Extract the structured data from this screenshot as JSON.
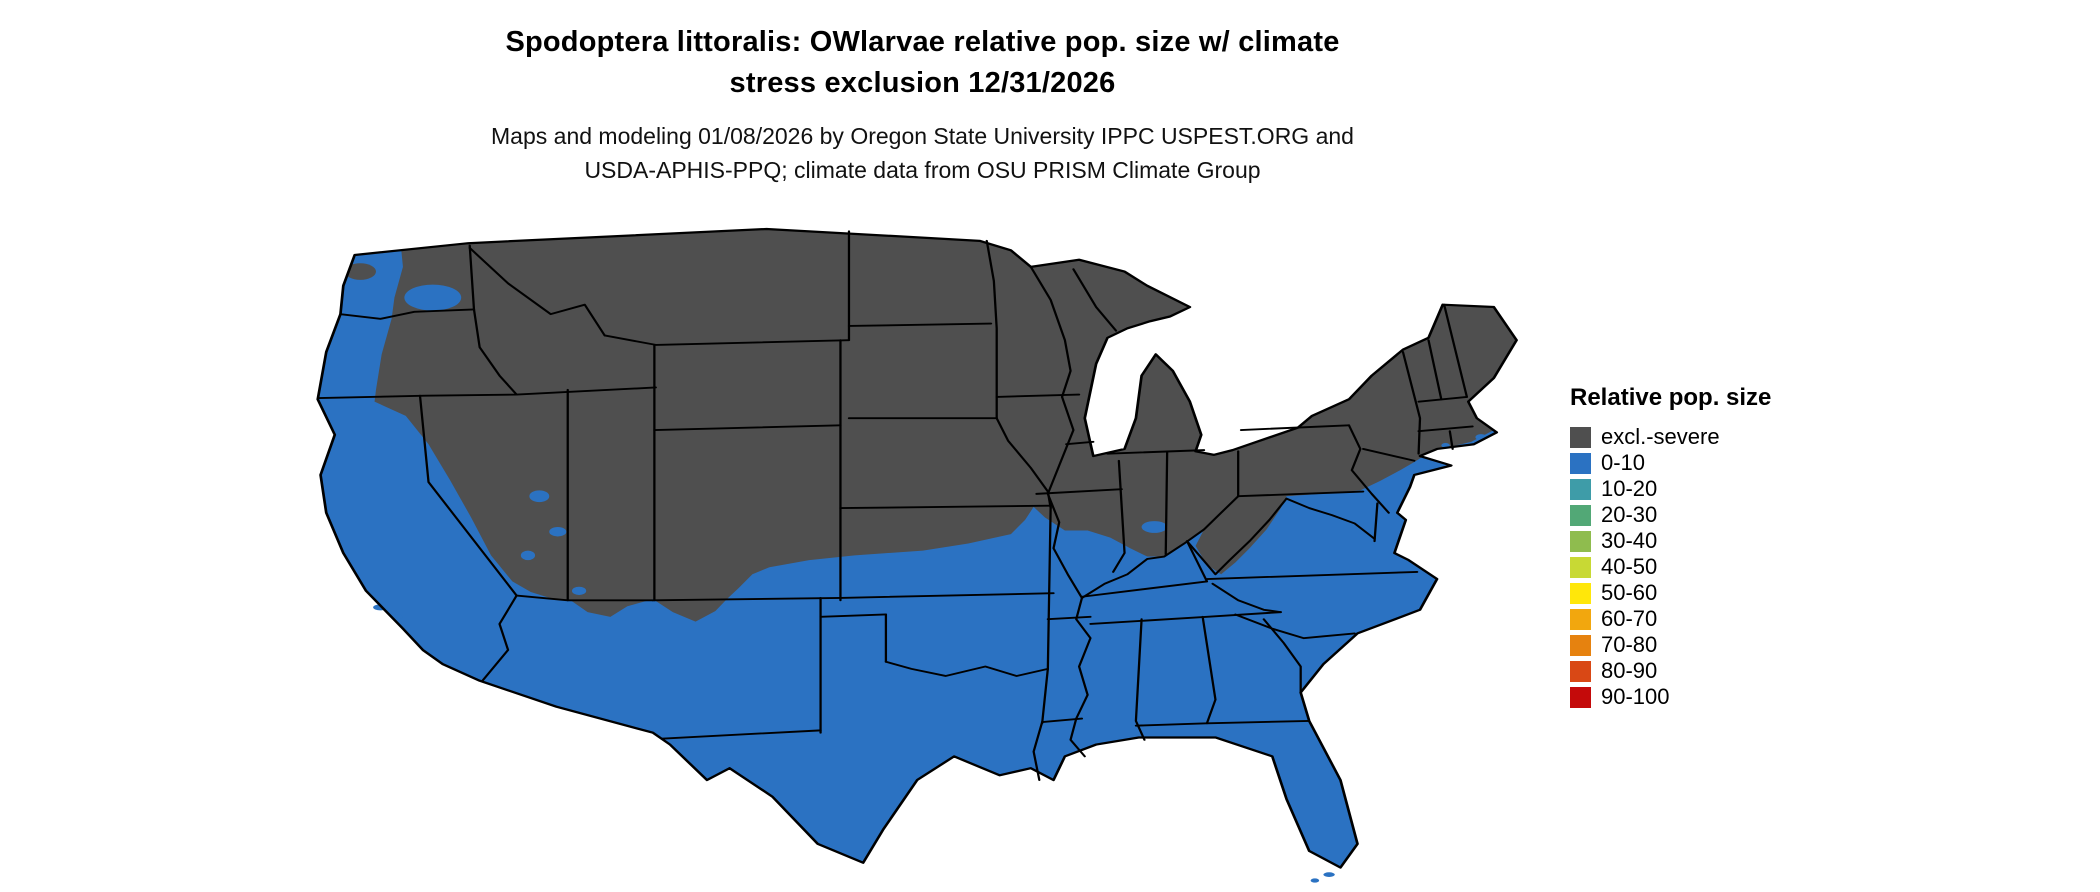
{
  "title": {
    "line1": "Spodoptera littoralis: OWlarvae relative pop. size w/ climate",
    "line2": "stress exclusion 12/31/2026"
  },
  "subtitle": {
    "line1": "Maps and modeling 01/08/2026 by Oregon State University IPPC USPEST.ORG and",
    "line2": "USDA-APHIS-PPQ; climate data from OSU PRISM Climate Group"
  },
  "legend": {
    "heading": "Relative pop. size",
    "items": [
      {
        "label": "excl.-severe",
        "color": "#4F4F4F"
      },
      {
        "label": "0-10",
        "color": "#2B72C2"
      },
      {
        "label": "10-20",
        "color": "#3E9CA8"
      },
      {
        "label": "20-30",
        "color": "#52A876"
      },
      {
        "label": "30-40",
        "color": "#8FBC4E"
      },
      {
        "label": "40-50",
        "color": "#C8D934"
      },
      {
        "label": "50-60",
        "color": "#FFE70A"
      },
      {
        "label": "60-70",
        "color": "#F2A70E"
      },
      {
        "label": "70-80",
        "color": "#E6820F"
      },
      {
        "label": "80-90",
        "color": "#D94815"
      },
      {
        "label": "90-100",
        "color": "#C40A0A"
      }
    ]
  },
  "map": {
    "region": "Continental United States",
    "excluded_color": "#4F4F4F",
    "population_color": "#2B72C2",
    "border_color": "#000000",
    "background_color": "#FFFFFF",
    "classes_present_on_map": [
      "excl.-severe",
      "0-10"
    ]
  }
}
